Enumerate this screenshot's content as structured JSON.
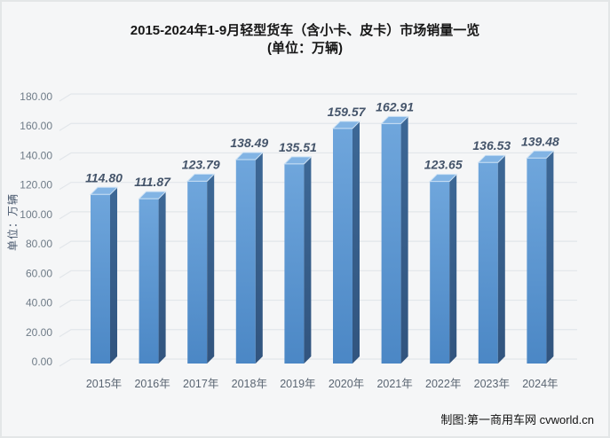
{
  "title": "2015-2024年1-9月轻型货车（含小卡、皮卡）市场销量一览",
  "subtitle": "(单位：万辆)",
  "footer": "制图:第一商用车网 cvworld.cn",
  "chart_data": {
    "type": "bar",
    "style": "3d-column",
    "title": "2015-2024年1-9月轻型货车（含小卡、皮卡）市场销量一览",
    "subtitle": "(单位：万辆)",
    "categories": [
      "2015年",
      "2016年",
      "2017年",
      "2018年",
      "2019年",
      "2020年",
      "2021年",
      "2022年",
      "2023年",
      "2024年"
    ],
    "values": [
      114.8,
      111.87,
      123.79,
      138.49,
      135.51,
      159.57,
      162.91,
      123.65,
      136.53,
      139.48
    ],
    "value_labels": [
      "114.80",
      "111.87",
      "123.79",
      "138.49",
      "135.51",
      "159.57",
      "162.91",
      "123.65",
      "136.53",
      "139.48"
    ],
    "xlabel": "",
    "ylabel": "单位：万辆",
    "ylim": [
      0,
      180
    ],
    "ytick_step": 20,
    "ytick_labels": [
      "0.00",
      "20.00",
      "40.00",
      "60.00",
      "80.00",
      "100.00",
      "120.00",
      "140.00",
      "160.00",
      "180.00"
    ],
    "grid": true,
    "legend": "none"
  },
  "colors": {
    "background": "#f5f6f7",
    "grid_line": "#e2e6ea",
    "bar_front_top": "#6fa6dc",
    "bar_front_bottom": "#4b87c5",
    "bar_side_top": "#3d6896",
    "bar_side_bottom": "#31547e",
    "bar_top_face": "#82b4e4",
    "bar_top_highlight": "#cde2f5",
    "value_label": "#44546a",
    "tick_label": "#6e7b87",
    "axis_label": "#5a6572",
    "title_text": "#161616",
    "footer_text": "#111111"
  }
}
